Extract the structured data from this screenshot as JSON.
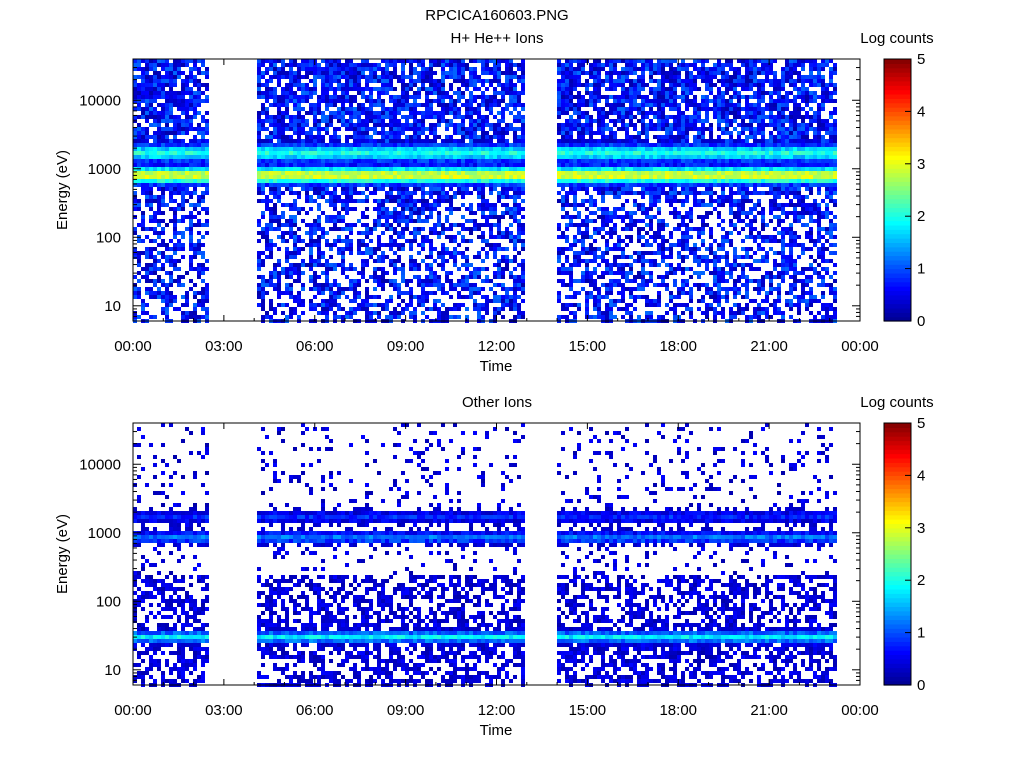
{
  "title": "RPCICA160603.PNG",
  "colormap": [
    "#00008f",
    "#0000ff",
    "#0080ff",
    "#00ffff",
    "#80ff80",
    "#ffff00",
    "#ff8000",
    "#ff0000",
    "#800000"
  ],
  "chart_data": [
    {
      "type": "heatmap",
      "title": "H+ He++ Ions",
      "xlabel": "Time",
      "ylabel": "Energy (eV)",
      "x_tick_labels": [
        "00:00",
        "03:00",
        "06:00",
        "09:00",
        "12:00",
        "15:00",
        "18:00",
        "21:00",
        "00:00"
      ],
      "x_tick_hours": [
        0,
        3,
        6,
        9,
        12,
        15,
        18,
        21,
        24
      ],
      "xlim_hours": [
        0,
        24
      ],
      "y_scale": "log",
      "y_tick_labels": [
        "10",
        "100",
        "1000",
        "10000"
      ],
      "y_tick_values": [
        10,
        100,
        1000,
        10000
      ],
      "ylim": [
        6,
        40000
      ],
      "data_gaps_hours": [
        [
          2.5,
          4.05
        ],
        [
          12.95,
          14.0
        ],
        [
          23.3,
          24.0
        ]
      ],
      "bands": [
        {
          "energy_ev": 800,
          "log_counts": 3.0
        },
        {
          "energy_ev": 1700,
          "log_counts": 2.0
        }
      ],
      "colorbar": {
        "label": "Log counts",
        "min": 0,
        "max": 5,
        "tick_labels": [
          "0",
          "1",
          "2",
          "3",
          "4",
          "5"
        ]
      }
    },
    {
      "type": "heatmap",
      "title": "Other Ions",
      "xlabel": "Time",
      "ylabel": "Energy (eV)",
      "x_tick_labels": [
        "00:00",
        "03:00",
        "06:00",
        "09:00",
        "12:00",
        "15:00",
        "18:00",
        "21:00",
        "00:00"
      ],
      "x_tick_hours": [
        0,
        3,
        6,
        9,
        12,
        15,
        18,
        21,
        24
      ],
      "xlim_hours": [
        0,
        24
      ],
      "y_scale": "log",
      "y_tick_labels": [
        "10",
        "100",
        "1000",
        "10000"
      ],
      "y_tick_values": [
        10,
        100,
        1000,
        10000
      ],
      "ylim": [
        6,
        40000
      ],
      "data_gaps_hours": [
        [
          2.5,
          4.05
        ],
        [
          12.95,
          14.0
        ],
        [
          23.3,
          24.0
        ]
      ],
      "bands": [
        {
          "energy_ev": 30,
          "log_counts": 1.8
        },
        {
          "energy_ev": 850,
          "log_counts": 1.2
        },
        {
          "energy_ev": 1700,
          "log_counts": 0.8
        }
      ],
      "colorbar": {
        "label": "Log counts",
        "min": 0,
        "max": 5,
        "tick_labels": [
          "0",
          "1",
          "2",
          "3",
          "4",
          "5"
        ]
      }
    }
  ]
}
